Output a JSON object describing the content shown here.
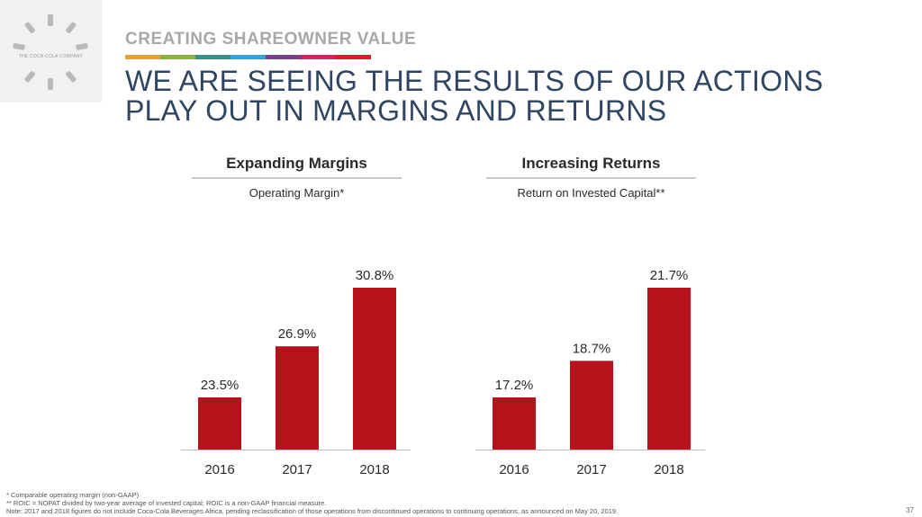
{
  "brand": {
    "logo_text": "THE COCA-COLA COMPANY"
  },
  "header": {
    "kicker": "CREATING SHAREOWNER VALUE",
    "stripe_colors": [
      "#e8a03a",
      "#8db33f",
      "#3a8f8a",
      "#36a2d9",
      "#7b3f8f",
      "#d4245b",
      "#e21b2b"
    ],
    "headline_line1": "WE ARE SEEING THE RESULTS OF OUR ACTIONS",
    "headline_line2": "PLAY OUT IN MARGINS AND RETURNS"
  },
  "panels": [
    {
      "title": "Expanding Margins",
      "subtitle": "Operating Margin*"
    },
    {
      "title": "Increasing Returns",
      "subtitle": "Return on Invested Capital**"
    }
  ],
  "chart_data": [
    {
      "type": "bar",
      "title": "Expanding Margins",
      "subtitle": "Operating Margin*",
      "categories": [
        "2016",
        "2017",
        "2018"
      ],
      "values": [
        23.5,
        26.9,
        30.8
      ],
      "labels": [
        "23.5%",
        "26.9%",
        "30.8%"
      ],
      "color": "#b5121b",
      "grid": false
    },
    {
      "type": "bar",
      "title": "Increasing Returns",
      "subtitle": "Return on Invested Capital**",
      "categories": [
        "2016",
        "2017",
        "2018"
      ],
      "values": [
        17.2,
        18.7,
        21.7
      ],
      "labels": [
        "17.2%",
        "18.7%",
        "21.7%"
      ],
      "color": "#b5121b",
      "grid": false
    }
  ],
  "footnotes": {
    "line1": "* Comparable operating margin (non-GAAP)",
    "line2": "** ROIC = NOPAT divided by two-year average of invested capital; ROIC is a non-GAAP financial measure.",
    "line3": "Note: 2017 and 2018 figures do not include Coca-Cola Beverages Africa, pending reclassification of those operations from discontinued operations to continuing operations, as announced on May 20, 2019."
  },
  "page_number": "37"
}
